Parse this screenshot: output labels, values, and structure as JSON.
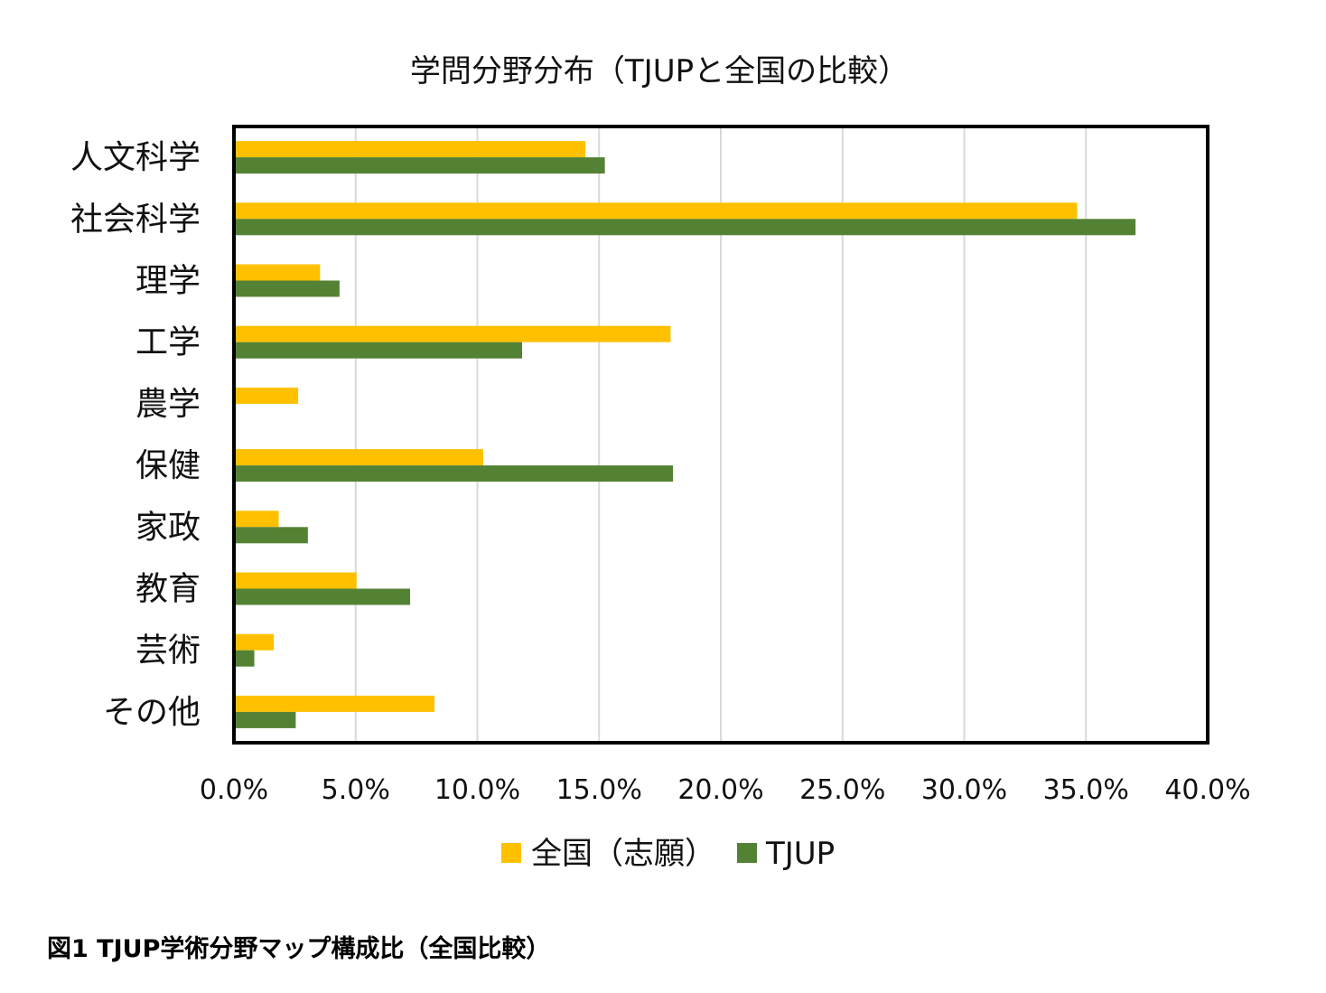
{
  "caption": "図1 TJUP学術分野マップ構成比（全国比較）",
  "chart_data": {
    "type": "bar",
    "orientation": "horizontal",
    "title": "学問分野分布（TJUPと全国の比較）",
    "categories": [
      "人文科学",
      "社会科学",
      "理学",
      "工学",
      "農学",
      "保健",
      "家政",
      "教育",
      "芸術",
      "その他"
    ],
    "series": [
      {
        "name": "全国（志願）",
        "color": "#FFC000",
        "values": [
          14.4,
          34.6,
          3.5,
          17.9,
          2.6,
          10.2,
          1.8,
          5.0,
          1.6,
          8.2
        ]
      },
      {
        "name": "TJUP",
        "color": "#548235",
        "values": [
          15.2,
          37.0,
          4.3,
          11.8,
          0.0,
          18.0,
          3.0,
          7.2,
          0.8,
          2.5
        ]
      }
    ],
    "xlim": [
      0,
      40
    ],
    "xticks": [
      "0.0%",
      "5.0%",
      "10.0%",
      "15.0%",
      "20.0%",
      "25.0%",
      "30.0%",
      "35.0%",
      "40.0%"
    ],
    "xlabel": "",
    "ylabel": "",
    "grid": true,
    "legend_position": "bottom"
  }
}
